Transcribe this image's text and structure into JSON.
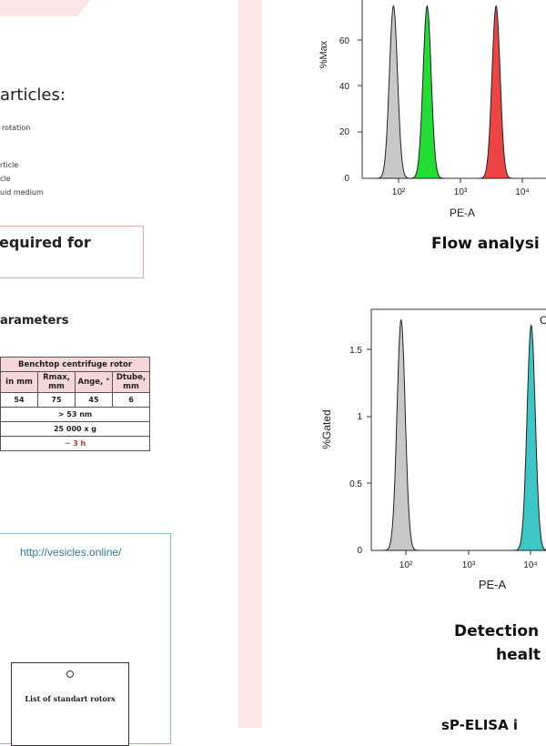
{
  "left": {
    "heading_particles": "articles:",
    "note_rotation": "rotation",
    "notes": [
      "rticle",
      "cle",
      "uid medium"
    ],
    "heading_required": "equired for",
    "heading_parameters": "arameters",
    "table": {
      "title": "Benchtop centrifuge rotor",
      "headers": [
        "in mm",
        "Rmax, mm",
        "Ange, °",
        "Dtube, mm"
      ],
      "row1": [
        "54",
        "75",
        "45",
        "6"
      ],
      "row2": "> 53 nm",
      "row3": "25 000 x g",
      "row4": "~ 3 h"
    },
    "link_text": "http://vesicles.online/",
    "card_title": "List of standart rotors"
  },
  "right": {
    "top_chart": {
      "ylabel": "%Max",
      "xlabel": "PE-A",
      "yticks": [
        "0",
        "20",
        "40",
        "60"
      ],
      "xticks": [
        "10²",
        "10³",
        "10⁴"
      ],
      "caption": "Flow analysi"
    },
    "bottom_chart": {
      "ylabel": "%Gated",
      "xlabel": "PE-A",
      "yticks": [
        "0",
        "0.5",
        "1",
        "1.5"
      ],
      "xticks": [
        "10²",
        "10³",
        "10⁴"
      ],
      "corner_label": "C",
      "caption_line1": "Detection",
      "caption_line2": "healt"
    },
    "bottom_text": "sP-ELISA i"
  },
  "colors": {
    "pink_band": "#fde6e6",
    "gray_peak": "#c8c8c8",
    "green_peak": "#22dd33",
    "red_peak": "#ef4444",
    "teal_peak": "#3cc6c6"
  },
  "chart_data": [
    {
      "type": "area",
      "ylabel": "%Max",
      "xlabel": "PE-A",
      "x_scale": "log",
      "xlim": [
        30,
        30000
      ],
      "ylim": [
        0,
        80
      ],
      "series": [
        {
          "color": "#c8c8c8",
          "peak_x": 80,
          "peak_y": 75
        },
        {
          "color": "#22dd33",
          "peak_x": 230,
          "peak_y": 75
        },
        {
          "color": "#ef4444",
          "peak_x": 2000,
          "peak_y": 75
        }
      ]
    },
    {
      "type": "area",
      "ylabel": "%Gated",
      "xlabel": "PE-A",
      "x_scale": "log",
      "xlim": [
        30,
        30000
      ],
      "ylim": [
        0,
        1.8
      ],
      "series": [
        {
          "color": "#c8c8c8",
          "peak_x": 80,
          "peak_y": 1.72
        },
        {
          "color": "#3cc6c6",
          "peak_x": 4500,
          "peak_y": 1.68
        }
      ]
    }
  ]
}
